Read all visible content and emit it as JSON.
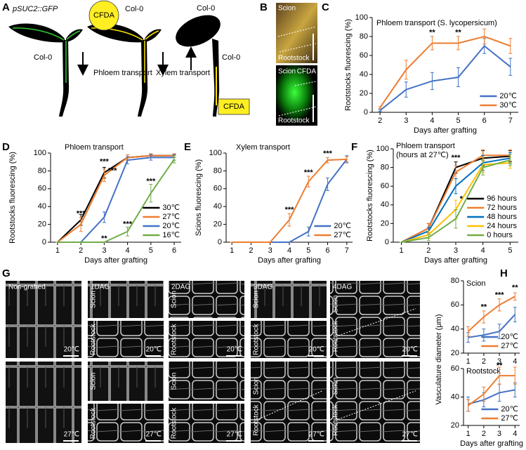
{
  "panel_labels": [
    "A",
    "B",
    "C",
    "D",
    "E",
    "F",
    "G",
    "H"
  ],
  "panel_a": {
    "reporter": "pSUC2::GFP",
    "genotype": "Col-0",
    "dye": "CFDA",
    "phloem": "Phloem transport",
    "xylem": "Xylem transport"
  },
  "panel_b": {
    "scion": "Scion",
    "rootstock": "Rootstock",
    "dye": "CFDA"
  },
  "panel_g": {
    "columns": [
      "Non-grafted",
      "1DAG",
      "2DAG",
      "3DAG",
      "4DAG"
    ],
    "scion": "Scion",
    "rootstock": "Rootstock",
    "temperatures": [
      "20℃",
      "27℃"
    ]
  },
  "chart_data": [
    {
      "type": "line",
      "title": "Phloem transport (S. lycopersicum)",
      "xlabel": "Days after grafting",
      "ylabel": "Rootstocks fluorescing (%)",
      "x": [
        2,
        3,
        4,
        5,
        6,
        7
      ],
      "xlim": [
        1.7,
        7.3
      ],
      "xticks": [
        2,
        3,
        4,
        5,
        6,
        7
      ],
      "ylim": [
        0,
        100
      ],
      "yticks": [
        0,
        20,
        40,
        60,
        80,
        100
      ],
      "legend": "lower right",
      "series": [
        {
          "name": "20℃",
          "color": "#4472c4",
          "values": [
            2,
            24,
            33,
            37,
            70,
            48
          ],
          "errors": [
            1,
            8,
            9,
            10,
            8,
            9
          ]
        },
        {
          "name": "30℃",
          "color": "#ed7d31",
          "values": [
            5,
            45,
            73,
            73,
            80,
            70
          ],
          "errors": [
            1,
            10,
            7,
            7,
            8,
            8
          ]
        }
      ],
      "annotations": [
        {
          "text": "**",
          "x": 4,
          "y": 84,
          "color": "#ed7d31"
        },
        {
          "text": "**",
          "x": 5,
          "y": 84,
          "color": "#ed7d31"
        }
      ]
    },
    {
      "type": "line",
      "title": "Phloem transport",
      "xlabel": "Days after grafting",
      "ylabel": "Rootstocks fluorescing (%)",
      "x": [
        1,
        2,
        3,
        4,
        5,
        6
      ],
      "xlim": [
        0.7,
        6.3
      ],
      "xticks": [
        1,
        2,
        3,
        4,
        5,
        6
      ],
      "ylim": [
        0,
        100
      ],
      "yticks": [
        0,
        20,
        40,
        60,
        80,
        100
      ],
      "legend": "lower right",
      "series": [
        {
          "name": "30℃",
          "color": "#000000",
          "values": [
            0,
            25,
            78,
            95,
            97,
            97
          ],
          "errors": [
            0,
            6,
            6,
            3,
            2,
            2
          ]
        },
        {
          "name": "27℃",
          "color": "#ed7d31",
          "values": [
            0,
            20,
            75,
            95,
            97,
            97
          ],
          "errors": [
            0,
            8,
            7,
            3,
            2,
            2
          ]
        },
        {
          "name": "20℃",
          "color": "#4472c4",
          "values": [
            0,
            0,
            28,
            92,
            95,
            95
          ],
          "errors": [
            0,
            0,
            6,
            4,
            3,
            3
          ]
        },
        {
          "name": "16℃",
          "color": "#70ad47",
          "values": [
            0,
            0,
            0,
            12,
            55,
            93
          ],
          "errors": [
            0,
            0,
            0,
            5,
            10,
            4
          ]
        }
      ],
      "annotations": [
        {
          "text": "***",
          "x": 2,
          "y": 32,
          "color": "#000000"
        },
        {
          "text": "***",
          "x": 3,
          "y": 90,
          "color": "#000000"
        },
        {
          "text": "***",
          "x": 3.35,
          "y": 80,
          "color": "#ed7d31"
        },
        {
          "text": "**",
          "x": 3,
          "y": 4,
          "color": "#70ad47"
        },
        {
          "text": "***",
          "x": 4,
          "y": 20,
          "color": "#70ad47"
        },
        {
          "text": "***",
          "x": 5,
          "y": 68,
          "color": "#70ad47"
        }
      ]
    },
    {
      "type": "line",
      "title": "Xylem transport",
      "xlabel": "Days after grafting",
      "ylabel": "Scions fluorescing (%)",
      "x": [
        1,
        2,
        3,
        4,
        5,
        6,
        7
      ],
      "xlim": [
        0.7,
        7.3
      ],
      "xticks": [
        1,
        2,
        3,
        4,
        5,
        6,
        7
      ],
      "ylim": [
        0,
        100
      ],
      "yticks": [
        0,
        20,
        40,
        60,
        80,
        100
      ],
      "legend": "lower right",
      "series": [
        {
          "name": "20℃",
          "color": "#4472c4",
          "values": [
            0,
            0,
            0,
            0,
            12,
            65,
            93
          ],
          "errors": [
            0,
            0,
            0,
            0,
            5,
            7,
            4
          ]
        },
        {
          "name": "27℃",
          "color": "#ed7d31",
          "values": [
            0,
            0,
            0,
            25,
            68,
            92,
            93
          ],
          "errors": [
            0,
            0,
            0,
            7,
            6,
            3,
            3
          ]
        }
      ],
      "annotations": [
        {
          "text": "***",
          "x": 4,
          "y": 36,
          "color": "#ed7d31"
        },
        {
          "text": "***",
          "x": 5,
          "y": 78,
          "color": "#ed7d31"
        },
        {
          "text": "***",
          "x": 6,
          "y": 99,
          "color": "#ed7d31"
        }
      ]
    },
    {
      "type": "line",
      "title": "Phloem transport",
      "subtitle": "(hours at 27℃)",
      "xlabel": "Days after grafting",
      "ylabel": "Rootstocks fluorescing (%)",
      "x": [
        1,
        2,
        3,
        4,
        5
      ],
      "xlim": [
        0.7,
        5.3
      ],
      "xticks": [
        1,
        2,
        3,
        4,
        5
      ],
      "ylim": [
        0,
        100
      ],
      "yticks": [
        0,
        20,
        40,
        60,
        80,
        100
      ],
      "legend": "lower right",
      "series": [
        {
          "name": "96 hours",
          "color": "#000000",
          "values": [
            0,
            15,
            80,
            90,
            92
          ],
          "errors": [
            0,
            5,
            6,
            8,
            6
          ]
        },
        {
          "name": "72 hours",
          "color": "#ed7d31",
          "values": [
            0,
            15,
            75,
            93,
            93
          ],
          "errors": [
            0,
            5,
            7,
            6,
            6
          ]
        },
        {
          "name": "48 hours",
          "color": "#0070c0",
          "values": [
            0,
            12,
            60,
            85,
            90
          ],
          "errors": [
            0,
            4,
            8,
            8,
            6
          ]
        },
        {
          "name": "24 hours",
          "color": "#ffc000",
          "values": [
            0,
            8,
            35,
            83,
            85
          ],
          "errors": [
            0,
            4,
            10,
            8,
            6
          ]
        },
        {
          "name": "0 hours",
          "color": "#70ad47",
          "values": [
            0,
            5,
            25,
            80,
            88
          ],
          "errors": [
            0,
            3,
            10,
            8,
            6
          ]
        }
      ],
      "annotations": [
        {
          "text": "***",
          "x": 3,
          "y": 90,
          "color": "#000000"
        },
        {
          "text": "*",
          "x": 3.2,
          "y": 46,
          "color": "#70ad47"
        }
      ]
    },
    {
      "type": "line",
      "title": "Scion",
      "ylabel": "Vasculature diameter (μm)",
      "x": [
        1,
        2,
        3,
        4
      ],
      "xlim": [
        0.7,
        4.3
      ],
      "xticks": [
        1,
        2,
        3,
        4
      ],
      "ylim": [
        20,
        80
      ],
      "yticks": [
        20,
        40,
        60,
        80
      ],
      "legend": "lower right",
      "series": [
        {
          "name": "20℃",
          "color": "#4472c4",
          "values": [
            33,
            35,
            38,
            52
          ],
          "errors": [
            4,
            5,
            6,
            6
          ]
        },
        {
          "name": "27℃",
          "color": "#ed7d31",
          "values": [
            38,
            50,
            60,
            67
          ],
          "errors": [
            4,
            5,
            5,
            3
          ]
        }
      ],
      "annotations": [
        {
          "text": "**",
          "x": 2,
          "y": 58,
          "color": "#000000"
        },
        {
          "text": "***",
          "x": 3,
          "y": 68,
          "color": "#000000"
        },
        {
          "text": "**",
          "x": 4,
          "y": 74,
          "color": "#000000"
        }
      ]
    },
    {
      "type": "line",
      "title": "Rootstock",
      "xlabel": "Days after grafting",
      "x": [
        1,
        2,
        3,
        4
      ],
      "xlim": [
        0.7,
        4.3
      ],
      "xticks": [
        1,
        2,
        3,
        4
      ],
      "ylim": [
        20,
        60
      ],
      "yticks": [
        20,
        40,
        60
      ],
      "legend": "lower right",
      "series": [
        {
          "name": "20℃",
          "color": "#4472c4",
          "values": [
            35,
            38,
            43,
            45
          ],
          "errors": [
            5,
            5,
            6,
            5
          ]
        },
        {
          "name": "27℃",
          "color": "#ed7d31",
          "values": [
            34,
            42,
            55,
            55
          ],
          "errors": [
            4,
            5,
            6,
            6
          ]
        }
      ],
      "annotations": [
        {
          "text": "**",
          "x": 3,
          "y": 62,
          "color": "#000000"
        }
      ]
    }
  ]
}
